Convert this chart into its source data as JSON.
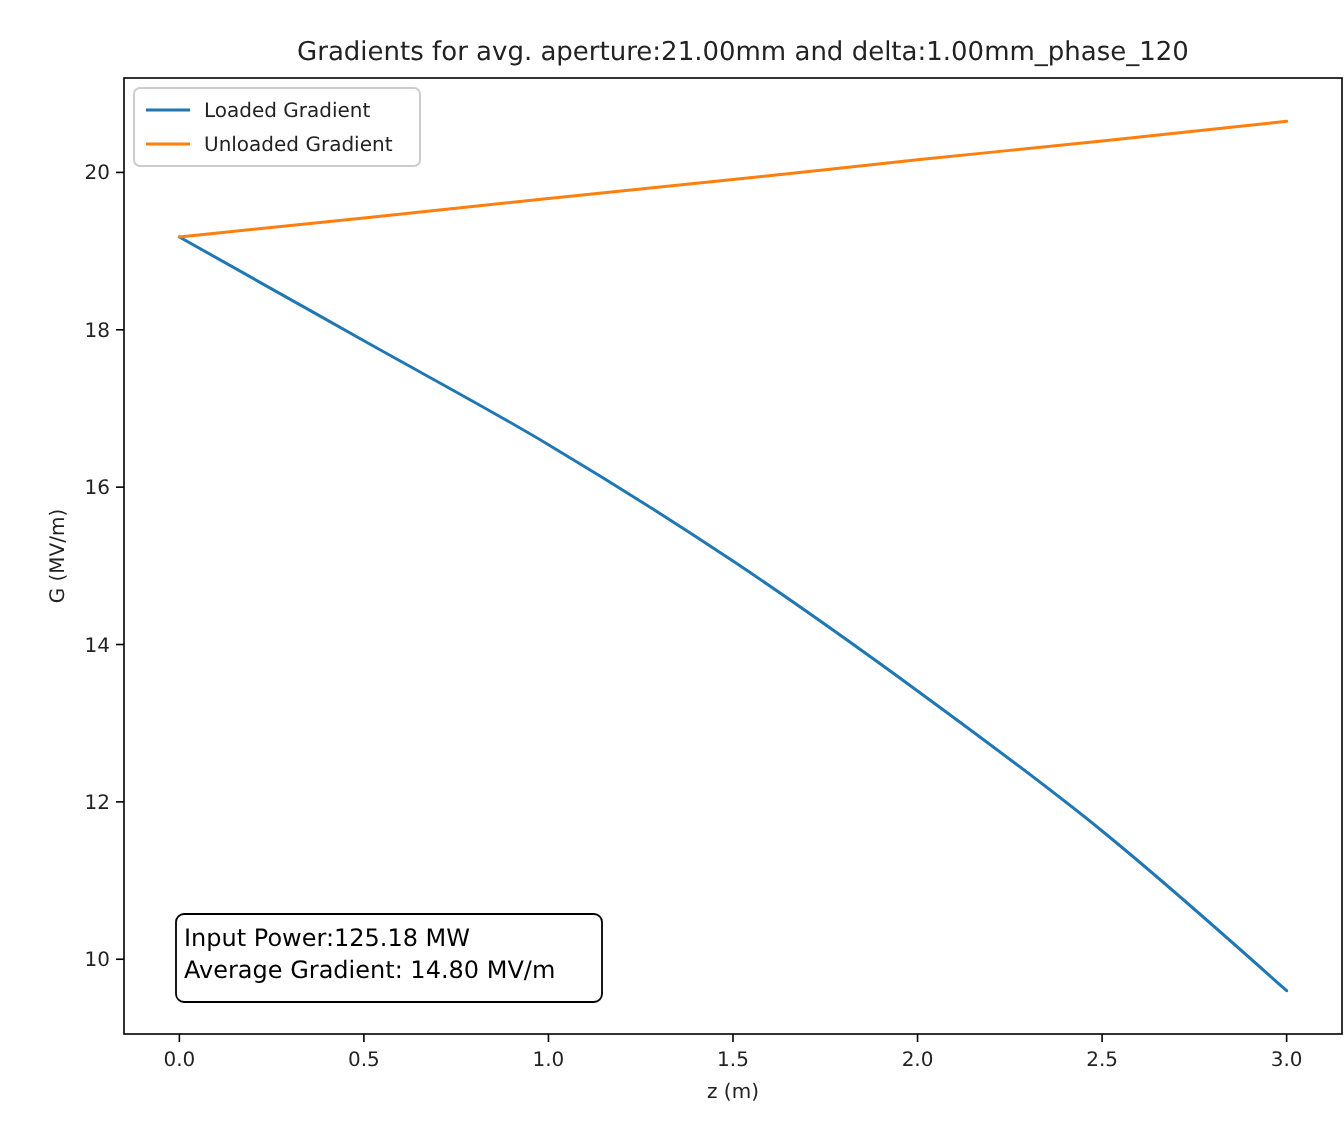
{
  "chart_data": {
    "type": "line",
    "title": "Gradients for avg. aperture:21.00mm and delta:1.00mm_phase_120",
    "xlabel": "z (m)",
    "ylabel": "G (MV/m)",
    "xlim": [
      -0.15,
      3.15
    ],
    "xticks": [
      {
        "value": 0,
        "label": "0.0"
      },
      {
        "value": 0.5,
        "label": "0.5"
      },
      {
        "value": 1,
        "label": "1.0"
      },
      {
        "value": 1.5,
        "label": "1.5"
      },
      {
        "value": 2,
        "label": "2.0"
      },
      {
        "value": 2.5,
        "label": "2.5"
      },
      {
        "value": 3,
        "label": "3.0"
      }
    ],
    "ylim": [
      9.05,
      21.2
    ],
    "yticks": [
      10,
      12,
      14,
      16,
      18,
      20
    ],
    "grid": false,
    "legend": "top left",
    "marker": "none",
    "line_style": "solid",
    "x": [
      0,
      0.5,
      1,
      1.5,
      2,
      2.5,
      3
    ],
    "series": [
      {
        "name": "Loaded Gradient",
        "color": "#1f77b4",
        "values": [
          19.18,
          17.86,
          16.54,
          15.06,
          13.41,
          11.63,
          9.6
        ]
      },
      {
        "name": "Unloaded Gradient",
        "color": "#ff7f0e",
        "values": [
          19.18,
          19.42,
          19.67,
          19.91,
          20.16,
          20.4,
          20.65
        ]
      }
    ],
    "annotations": [
      "Input Power:125.18 MW\nAverage Gradient: 14.80 MV/m"
    ]
  }
}
